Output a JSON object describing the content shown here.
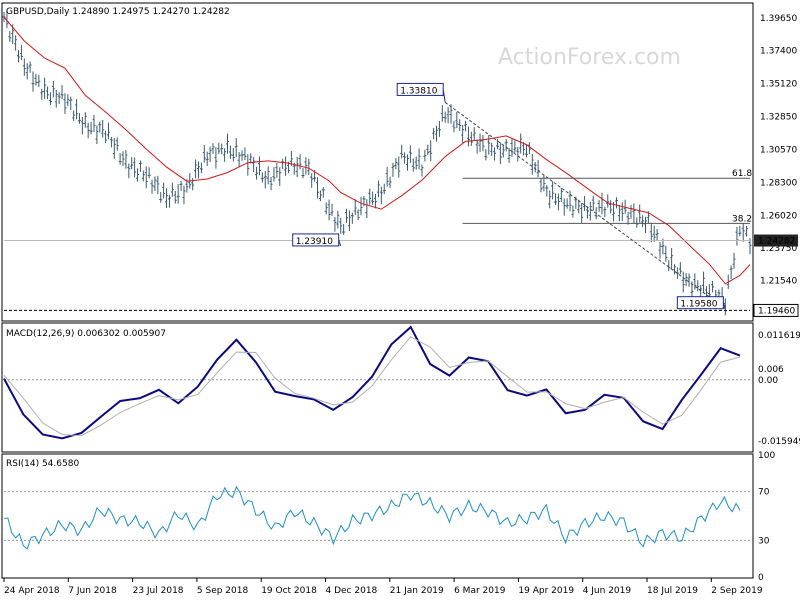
{
  "chart_data": [
    {
      "panel": "price",
      "type": "bar",
      "instrument_label": "GBPUSD,Daily  1.24890 1.24975 1.24270 1.24282",
      "watermark": "ActionForex.com",
      "ylim": [
        1.188,
        1.406
      ],
      "y_ticks": [
        1.3965,
        1.374,
        1.3512,
        1.3285,
        1.3057,
        1.283,
        1.2602,
        1.2375,
        1.2154
      ],
      "y_tick_labels": [
        "1.39650",
        "1.37400",
        "1.35120",
        "1.32850",
        "1.30570",
        "1.28300",
        "1.26020",
        "1.23750",
        "1.21540"
      ],
      "price_label": "1.24282",
      "price_value": 1.24282,
      "level_label": "1.19460",
      "level_value": 1.1946,
      "annotations": [
        {
          "text": "1.33810",
          "value": 1.3381,
          "date": "2019-02-22"
        },
        {
          "text": "1.23910",
          "value": 1.2391,
          "date": "2018-12-12"
        },
        {
          "text": "1.19580",
          "value": 1.1958,
          "date": "2019-09-03"
        }
      ],
      "fib_levels": [
        {
          "label": "61.8",
          "value": 1.2858
        },
        {
          "label": "38.2",
          "value": 1.2547
        }
      ],
      "series": [
        {
          "kind": "ohlc",
          "color": "#3a5a70",
          "dates": [
            "2018-04-24",
            "2018-05-08",
            "2018-05-22",
            "2018-06-05",
            "2018-06-19",
            "2018-07-03",
            "2018-07-17",
            "2018-07-31",
            "2018-08-14",
            "2018-08-28",
            "2018-09-11",
            "2018-09-25",
            "2018-10-09",
            "2018-10-23",
            "2018-11-06",
            "2018-11-20",
            "2018-12-04",
            "2018-12-12",
            "2018-12-26",
            "2019-01-09",
            "2019-01-23",
            "2019-02-06",
            "2019-02-22",
            "2019-03-08",
            "2019-03-22",
            "2019-04-05",
            "2019-04-19",
            "2019-05-03",
            "2019-05-17",
            "2019-05-31",
            "2019-06-14",
            "2019-06-28",
            "2019-07-12",
            "2019-07-26",
            "2019-08-09",
            "2019-08-23",
            "2019-09-03",
            "2019-09-13",
            "2019-09-20"
          ],
          "close": [
            1.397,
            1.364,
            1.345,
            1.341,
            1.322,
            1.318,
            1.296,
            1.288,
            1.272,
            1.279,
            1.302,
            1.306,
            1.299,
            1.284,
            1.296,
            1.292,
            1.264,
            1.252,
            1.266,
            1.276,
            1.301,
            1.295,
            1.331,
            1.318,
            1.306,
            1.305,
            1.307,
            1.276,
            1.268,
            1.264,
            1.267,
            1.262,
            1.255,
            1.229,
            1.213,
            1.209,
            1.201,
            1.252,
            1.2428
          ]
        }
      ]
    },
    {
      "panel": "macd",
      "type": "line",
      "title": "MACD(12,26,9) 0.006302 0.005907",
      "ylim": [
        -0.0185,
        0.0145
      ],
      "y_ticks": [
        0.01161,
        0.0,
        -0.01594
      ],
      "y_tick_labels": [
        "0.011619",
        "0.00",
        "-0.015949"
      ],
      "current_label": "0.006302",
      "signal_label": "0.006",
      "series": [
        {
          "name": "MACD",
          "color": "#0a0a80",
          "values": [
            0.0003,
            -0.009,
            -0.0142,
            -0.0152,
            -0.0138,
            -0.0096,
            -0.0055,
            -0.0048,
            -0.0026,
            -0.0061,
            -0.0018,
            0.0052,
            0.0104,
            0.0046,
            -0.0031,
            -0.0042,
            -0.0051,
            -0.0078,
            -0.0045,
            0.0008,
            0.0092,
            0.0137,
            0.0041,
            0.0011,
            0.0058,
            0.0048,
            -0.0027,
            -0.0041,
            -0.0025,
            -0.0087,
            -0.0078,
            -0.0039,
            -0.0047,
            -0.0108,
            -0.0128,
            -0.0052,
            0.0014,
            0.0082,
            0.0063
          ]
        },
        {
          "name": "Signal",
          "color": "#b0b0b0",
          "values": [
            0.0012,
            -0.0048,
            -0.0112,
            -0.0142,
            -0.0145,
            -0.0118,
            -0.0085,
            -0.0062,
            -0.0041,
            -0.0052,
            -0.0038,
            0.0018,
            0.0072,
            0.0071,
            0.0004,
            -0.0035,
            -0.0048,
            -0.0065,
            -0.0058,
            -0.0016,
            0.0052,
            0.0112,
            0.0085,
            0.0032,
            0.0045,
            0.0049,
            0.0008,
            -0.0032,
            -0.0031,
            -0.0062,
            -0.0075,
            -0.0058,
            -0.0046,
            -0.0084,
            -0.0115,
            -0.0092,
            -0.0025,
            0.0046,
            0.0059
          ]
        }
      ]
    },
    {
      "panel": "rsi",
      "type": "line",
      "title": "RSI(14) 54.6580",
      "ylim": [
        0,
        100
      ],
      "y_ticks": [
        100,
        70,
        30,
        0
      ],
      "y_tick_labels": [
        "100",
        "70",
        "30",
        "0"
      ],
      "series": [
        {
          "name": "RSI",
          "color": "#1e90c8",
          "values": [
            48,
            26,
            34,
            43,
            38,
            55,
            47,
            45,
            35,
            52,
            41,
            67,
            70,
            55,
            40,
            54,
            44,
            32,
            46,
            51,
            58,
            68,
            60,
            50,
            58,
            54,
            44,
            48,
            55,
            32,
            44,
            50,
            45,
            28,
            36,
            32,
            48,
            62,
            54.66
          ]
        }
      ]
    }
  ],
  "x_axis": {
    "tick_labels": [
      "24 Apr 2018",
      "7 Jun 2018",
      "23 Jul 2018",
      "5 Sep 2018",
      "19 Oct 2018",
      "4 Dec 2018",
      "21 Jan 2019",
      "6 Mar 2019",
      "19 Apr 2019",
      "4 Jun 2019",
      "18 Jul 2019",
      "2 Sep 2019"
    ]
  },
  "colors": {
    "bars": "#3a5a70",
    "moving_average": "#d01818",
    "macd": "#0a0a80",
    "signal": "#b0b0b0",
    "rsi": "#1e90c8",
    "label_border": "#1a2a8a",
    "fib_line": "#555555"
  }
}
